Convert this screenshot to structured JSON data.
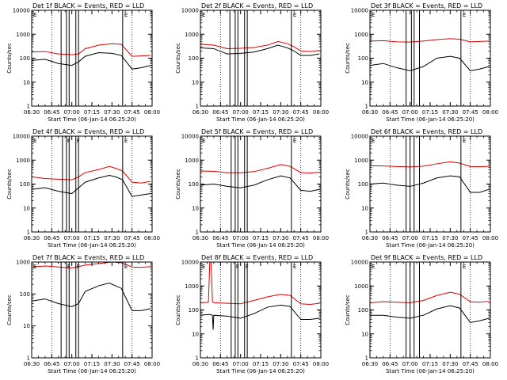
{
  "chart_data": [
    {
      "type": "line",
      "title": "Det 1f BLACK = Events, RED = LLD",
      "xlabel": "Start Time (06-Jan-14 06:25:20)",
      "ylabel": "Counts/sec",
      "yscale": "log",
      "ylim": [
        1,
        10000
      ],
      "xlim": [
        "06:30",
        "08:00"
      ],
      "x_ticks": [
        "06:30",
        "06:45",
        "07:00",
        "07:15",
        "07:30",
        "07:45",
        "08:00"
      ],
      "y_ticks": [
        "1",
        "10",
        "100",
        "1000",
        "10000"
      ],
      "vlines_solid": [
        "06:52",
        "06:56",
        "06:58",
        "07:03",
        "07:05",
        "07:38"
      ],
      "vlines_dotted": [
        "06:45",
        "07:45"
      ],
      "flags": [
        "E",
        "E"
      ],
      "series": [
        {
          "name": "LLD",
          "color": "#e00000",
          "x": [
            "06:30",
            "06:40",
            "06:50",
            "07:00",
            "07:05",
            "07:10",
            "07:20",
            "07:30",
            "07:37",
            "07:45",
            "07:52",
            "07:59"
          ],
          "values": [
            180,
            190,
            150,
            140,
            150,
            250,
            350,
            400,
            380,
            120,
            125,
            130
          ]
        },
        {
          "name": "Events",
          "color": "#000000",
          "x": [
            "06:30",
            "06:40",
            "06:50",
            "07:00",
            "07:05",
            "07:10",
            "07:20",
            "07:30",
            "07:37",
            "07:45",
            "07:52",
            "07:59"
          ],
          "values": [
            80,
            90,
            60,
            50,
            70,
            120,
            170,
            160,
            130,
            35,
            40,
            50
          ]
        }
      ]
    },
    {
      "type": "line",
      "title": "Det 2f BLACK = Events, RED = LLD",
      "xlabel": "Start Time (06-Jan-14 06:25:20)",
      "ylabel": "Counts/sec",
      "yscale": "log",
      "ylim": [
        1,
        10000
      ],
      "xlim": [
        "06:30",
        "08:00"
      ],
      "x_ticks": [
        "06:30",
        "06:45",
        "07:00",
        "07:15",
        "07:30",
        "07:45",
        "08:00"
      ],
      "y_ticks": [
        "1",
        "10",
        "100",
        "1000",
        "10000"
      ],
      "vlines_solid": [
        "06:52",
        "06:56",
        "06:58",
        "07:03",
        "07:05",
        "07:38"
      ],
      "vlines_dotted": [
        "06:45",
        "07:45"
      ],
      "flags": [
        "E",
        "E"
      ],
      "series": [
        {
          "name": "LLD",
          "color": "#e00000",
          "x": [
            "06:30",
            "06:40",
            "06:50",
            "07:00",
            "07:10",
            "07:20",
            "07:28",
            "07:35",
            "07:40",
            "07:45",
            "07:52",
            "07:59"
          ],
          "values": [
            380,
            350,
            250,
            260,
            280,
            350,
            500,
            400,
            300,
            200,
            190,
            210
          ]
        },
        {
          "name": "Events",
          "color": "#000000",
          "x": [
            "06:30",
            "06:40",
            "06:50",
            "07:00",
            "07:10",
            "07:20",
            "07:28",
            "07:35",
            "07:40",
            "07:45",
            "07:52",
            "07:59"
          ],
          "values": [
            270,
            250,
            150,
            160,
            180,
            250,
            350,
            270,
            200,
            130,
            130,
            150
          ]
        }
      ]
    },
    {
      "type": "line",
      "title": "Det 3f BLACK = Events, RED = LLD",
      "xlabel": "Start Time (06-Jan-14 06:25:20)",
      "ylabel": "Counts/sec",
      "yscale": "log",
      "ylim": [
        1,
        10000
      ],
      "xlim": [
        "06:30",
        "08:00"
      ],
      "x_ticks": [
        "06:30",
        "06:45",
        "07:00",
        "07:15",
        "07:30",
        "07:45",
        "08:00"
      ],
      "y_ticks": [
        "1",
        "10",
        "100",
        "1000",
        "10000"
      ],
      "vlines_solid": [
        "06:57",
        "07:01",
        "07:03",
        "07:07",
        "07:38"
      ],
      "vlines_dotted": [
        "06:45",
        "07:45"
      ],
      "flags": [
        "E",
        "E"
      ],
      "series": [
        {
          "name": "LLD",
          "color": "#e00000",
          "x": [
            "06:30",
            "06:40",
            "06:50",
            "07:00",
            "07:10",
            "07:20",
            "07:30",
            "07:37",
            "07:45",
            "07:52",
            "07:59"
          ],
          "values": [
            520,
            540,
            480,
            470,
            520,
            600,
            650,
            620,
            480,
            500,
            520
          ]
        },
        {
          "name": "Events",
          "color": "#000000",
          "x": [
            "06:30",
            "06:40",
            "06:50",
            "07:00",
            "07:10",
            "07:20",
            "07:30",
            "07:37",
            "07:45",
            "07:52",
            "07:59"
          ],
          "values": [
            50,
            60,
            40,
            30,
            45,
            100,
            120,
            100,
            30,
            35,
            45
          ]
        }
      ]
    },
    {
      "type": "line",
      "title": "Det 4f BLACK = Events, RED = LLD",
      "xlabel": "Start Time (06-Jan-14 06:25:20)",
      "ylabel": "Counts/sec",
      "yscale": "log",
      "ylim": [
        1,
        10000
      ],
      "xlim": [
        "06:30",
        "08:00"
      ],
      "x_ticks": [
        "06:30",
        "06:45",
        "07:00",
        "07:15",
        "07:30",
        "07:45",
        "08:00"
      ],
      "y_ticks": [
        "1",
        "10",
        "100",
        "1000",
        "10000"
      ],
      "vlines_solid": [
        "06:53",
        "06:56",
        "06:58",
        "07:03",
        "07:05",
        "07:38"
      ],
      "vlines_dotted": [
        "06:45",
        "07:45"
      ],
      "flags": [
        "E",
        "F",
        "F",
        "E"
      ],
      "series": [
        {
          "name": "LLD",
          "color": "#e00000",
          "x": [
            "06:30",
            "06:40",
            "06:50",
            "07:00",
            "07:05",
            "07:10",
            "07:20",
            "07:28",
            "07:33",
            "07:38",
            "07:45",
            "07:52",
            "07:59"
          ],
          "values": [
            200,
            170,
            160,
            150,
            200,
            300,
            400,
            550,
            450,
            350,
            120,
            110,
            130
          ]
        },
        {
          "name": "Events",
          "color": "#000000",
          "x": [
            "06:30",
            "06:40",
            "06:50",
            "07:00",
            "07:05",
            "07:10",
            "07:20",
            "07:28",
            "07:33",
            "07:38",
            "07:45",
            "07:52",
            "07:59"
          ],
          "values": [
            60,
            70,
            50,
            40,
            70,
            120,
            180,
            230,
            200,
            150,
            30,
            35,
            40
          ]
        }
      ]
    },
    {
      "type": "line",
      "title": "Det 5f BLACK = Events, RED = LLD",
      "xlabel": "Start Time (06-Jan-14 06:25:20)",
      "ylabel": "Counts/sec",
      "yscale": "log",
      "ylim": [
        1,
        10000
      ],
      "xlim": [
        "06:30",
        "08:00"
      ],
      "x_ticks": [
        "06:30",
        "06:45",
        "07:00",
        "07:15",
        "07:30",
        "07:45",
        "08:00"
      ],
      "y_ticks": [
        "1",
        "10",
        "100",
        "1000",
        "10000"
      ],
      "vlines_solid": [
        "06:53",
        "06:56",
        "06:58",
        "07:03",
        "07:05",
        "07:38"
      ],
      "vlines_dotted": [
        "06:45",
        "07:45"
      ],
      "flags": [
        "E",
        "E"
      ],
      "series": [
        {
          "name": "LLD",
          "color": "#e00000",
          "x": [
            "06:30",
            "06:40",
            "06:50",
            "07:00",
            "07:10",
            "07:20",
            "07:30",
            "07:37",
            "07:45",
            "07:52",
            "07:59"
          ],
          "values": [
            350,
            340,
            300,
            300,
            330,
            450,
            650,
            550,
            300,
            290,
            310
          ]
        },
        {
          "name": "Events",
          "color": "#000000",
          "x": [
            "06:30",
            "06:40",
            "06:50",
            "07:00",
            "07:10",
            "07:20",
            "07:30",
            "07:37",
            "07:45",
            "07:52",
            "07:59"
          ],
          "values": [
            90,
            100,
            80,
            70,
            90,
            150,
            220,
            180,
            55,
            50,
            60
          ]
        }
      ]
    },
    {
      "type": "line",
      "title": "Det 6f BLACK = Events, RED = LLD",
      "xlabel": "Start Time (06-Jan-14 06:25:20)",
      "ylabel": "Counts/sec",
      "yscale": "log",
      "ylim": [
        1,
        10000
      ],
      "xlim": [
        "06:30",
        "08:00"
      ],
      "x_ticks": [
        "06:30",
        "06:45",
        "07:00",
        "07:15",
        "07:30",
        "07:45",
        "08:00"
      ],
      "y_ticks": [
        "1",
        "10",
        "100",
        "1000",
        "10000"
      ],
      "vlines_solid": [
        "06:57",
        "07:00",
        "07:03",
        "07:07",
        "07:38"
      ],
      "vlines_dotted": [
        "06:45",
        "07:45"
      ],
      "flags": [
        "E",
        "E"
      ],
      "series": [
        {
          "name": "LLD",
          "color": "#e00000",
          "x": [
            "06:30",
            "06:40",
            "06:50",
            "07:00",
            "07:10",
            "07:20",
            "07:30",
            "07:37",
            "07:45",
            "07:52",
            "07:59"
          ],
          "values": [
            580,
            570,
            540,
            520,
            560,
            700,
            850,
            750,
            540,
            530,
            550
          ]
        },
        {
          "name": "Events",
          "color": "#000000",
          "x": [
            "06:30",
            "06:40",
            "06:50",
            "07:00",
            "07:10",
            "07:20",
            "07:30",
            "07:37",
            "07:45",
            "07:52",
            "07:59"
          ],
          "values": [
            100,
            110,
            90,
            80,
            110,
            180,
            220,
            200,
            45,
            45,
            60
          ]
        }
      ]
    },
    {
      "type": "line",
      "title": "Det 7f BLACK = Events, RED = LLD",
      "xlabel": "Start Time (06-Jan-14 06:25:20)",
      "ylabel": "Counts/sec",
      "yscale": "log",
      "ylim": [
        1,
        1000
      ],
      "xlim": [
        "06:30",
        "08:00"
      ],
      "x_ticks": [
        "06:30",
        "06:45",
        "07:00",
        "07:15",
        "07:30",
        "07:45",
        "08:00"
      ],
      "y_ticks": [
        "1",
        "10",
        "100",
        "1000"
      ],
      "vlines_solid": [
        "06:52",
        "06:56",
        "06:58",
        "07:03",
        "07:05",
        "07:38"
      ],
      "vlines_dotted": [
        "06:45",
        "07:45"
      ],
      "flags": [
        "E",
        "F",
        "F",
        "E"
      ],
      "series": [
        {
          "name": "LLD",
          "color": "#e00000",
          "x": [
            "06:30",
            "06:40",
            "06:50",
            "07:00",
            "07:10",
            "07:20",
            "07:30",
            "07:37",
            "07:45",
            "07:52",
            "07:59"
          ],
          "values": [
            700,
            750,
            700,
            650,
            800,
            900,
            1000,
            950,
            700,
            680,
            720
          ]
        },
        {
          "name": "Events",
          "color": "#000000",
          "x": [
            "06:30",
            "06:40",
            "06:50",
            "07:00",
            "07:05",
            "07:10",
            "07:20",
            "07:28",
            "07:37",
            "07:45",
            "07:52",
            "07:59"
          ],
          "values": [
            60,
            70,
            50,
            40,
            50,
            120,
            180,
            220,
            150,
            30,
            30,
            35
          ]
        }
      ]
    },
    {
      "type": "line",
      "title": "Det 8f BLACK = Events, RED = LLD",
      "xlabel": "Start Time (06-Jan-14 06:25:20)",
      "ylabel": "Counts/sec",
      "yscale": "log",
      "ylim": [
        1,
        10000
      ],
      "xlim": [
        "06:30",
        "08:00"
      ],
      "x_ticks": [
        "06:30",
        "06:45",
        "07:00",
        "07:15",
        "07:30",
        "07:45",
        "08:00"
      ],
      "y_ticks": [
        "1",
        "10",
        "100",
        "1000",
        "10000"
      ],
      "vlines_solid": [
        "06:53",
        "06:56",
        "06:58",
        "07:03",
        "07:05",
        "07:38"
      ],
      "vlines_dotted": [
        "06:45",
        "07:45"
      ],
      "flags": [
        "E",
        "F",
        "F",
        "E"
      ],
      "series": [
        {
          "name": "LLD",
          "color": "#e00000",
          "x": [
            "06:30",
            "06:36",
            "06:37",
            "06:38",
            "06:39",
            "06:40",
            "06:50",
            "07:00",
            "07:10",
            "07:20",
            "07:30",
            "07:37",
            "07:45",
            "07:52",
            "07:59"
          ],
          "values": [
            200,
            210,
            10000,
            10000,
            220,
            200,
            190,
            180,
            250,
            350,
            450,
            400,
            180,
            170,
            190
          ]
        },
        {
          "name": "Events",
          "color": "#000000",
          "x": [
            "06:30",
            "06:37",
            "06:39",
            "06:39.5",
            "06:40",
            "06:50",
            "07:00",
            "07:10",
            "07:20",
            "07:30",
            "07:37",
            "07:45",
            "07:52",
            "07:59"
          ],
          "values": [
            60,
            65,
            60,
            15,
            60,
            55,
            45,
            70,
            130,
            160,
            140,
            40,
            40,
            45
          ]
        }
      ]
    },
    {
      "type": "line",
      "title": "Det 9f BLACK = Events, RED = LLD",
      "xlabel": "Start Time (06-Jan-14 06:25:20)",
      "ylabel": "Counts/sec",
      "yscale": "log",
      "ylim": [
        1,
        10000
      ],
      "xlim": [
        "06:30",
        "08:00"
      ],
      "x_ticks": [
        "06:30",
        "06:45",
        "07:00",
        "07:15",
        "07:30",
        "07:45",
        "08:00"
      ],
      "y_ticks": [
        "1",
        "10",
        "100",
        "1000",
        "10000"
      ],
      "vlines_solid": [
        "06:57",
        "07:00",
        "07:03",
        "07:07",
        "07:38"
      ],
      "vlines_dotted": [
        "06:45",
        "07:45"
      ],
      "flags": [
        "E",
        "E"
      ],
      "series": [
        {
          "name": "LLD",
          "color": "#e00000",
          "x": [
            "06:30",
            "06:40",
            "06:50",
            "07:00",
            "07:10",
            "07:20",
            "07:30",
            "07:37",
            "07:45",
            "07:52",
            "07:59"
          ],
          "values": [
            200,
            220,
            210,
            200,
            250,
            400,
            550,
            450,
            220,
            210,
            230
          ]
        },
        {
          "name": "Events",
          "color": "#000000",
          "x": [
            "06:30",
            "06:40",
            "06:50",
            "07:00",
            "07:10",
            "07:20",
            "07:30",
            "07:37",
            "07:45",
            "07:52",
            "07:59"
          ],
          "values": [
            60,
            60,
            50,
            45,
            60,
            110,
            150,
            120,
            30,
            35,
            45
          ]
        }
      ]
    }
  ]
}
